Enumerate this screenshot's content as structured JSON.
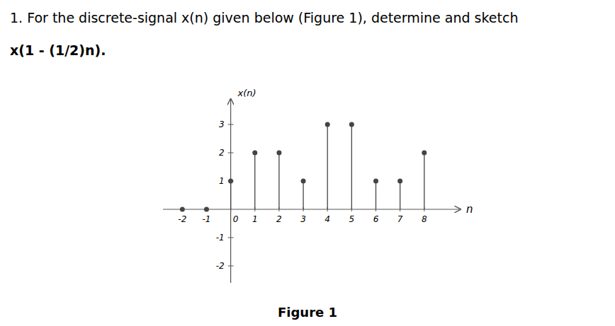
{
  "chart_data": {
    "type": "stem",
    "title": "1.  For the discrete-signal x(n) given below (Figure 1), determine and sketch",
    "subtitle": "x(1 - (1/2)n).",
    "annotations": [
      "Figure 1"
    ],
    "x": [
      -2,
      -1,
      0,
      1,
      2,
      3,
      4,
      5,
      6,
      7,
      8
    ],
    "values": [
      0,
      0,
      1,
      2,
      2,
      1,
      3,
      3,
      1,
      1,
      2
    ],
    "xlim": [
      -2.8,
      9.5
    ],
    "ylim": [
      -2.6,
      3.9
    ],
    "xticks": [
      -2,
      -1,
      0,
      1,
      2,
      3,
      4,
      5,
      6,
      7,
      8
    ],
    "yticks": [
      -2,
      -1,
      1,
      2,
      3
    ],
    "xlabel": "n",
    "ylabel": "x(n)",
    "color": "#444444"
  }
}
